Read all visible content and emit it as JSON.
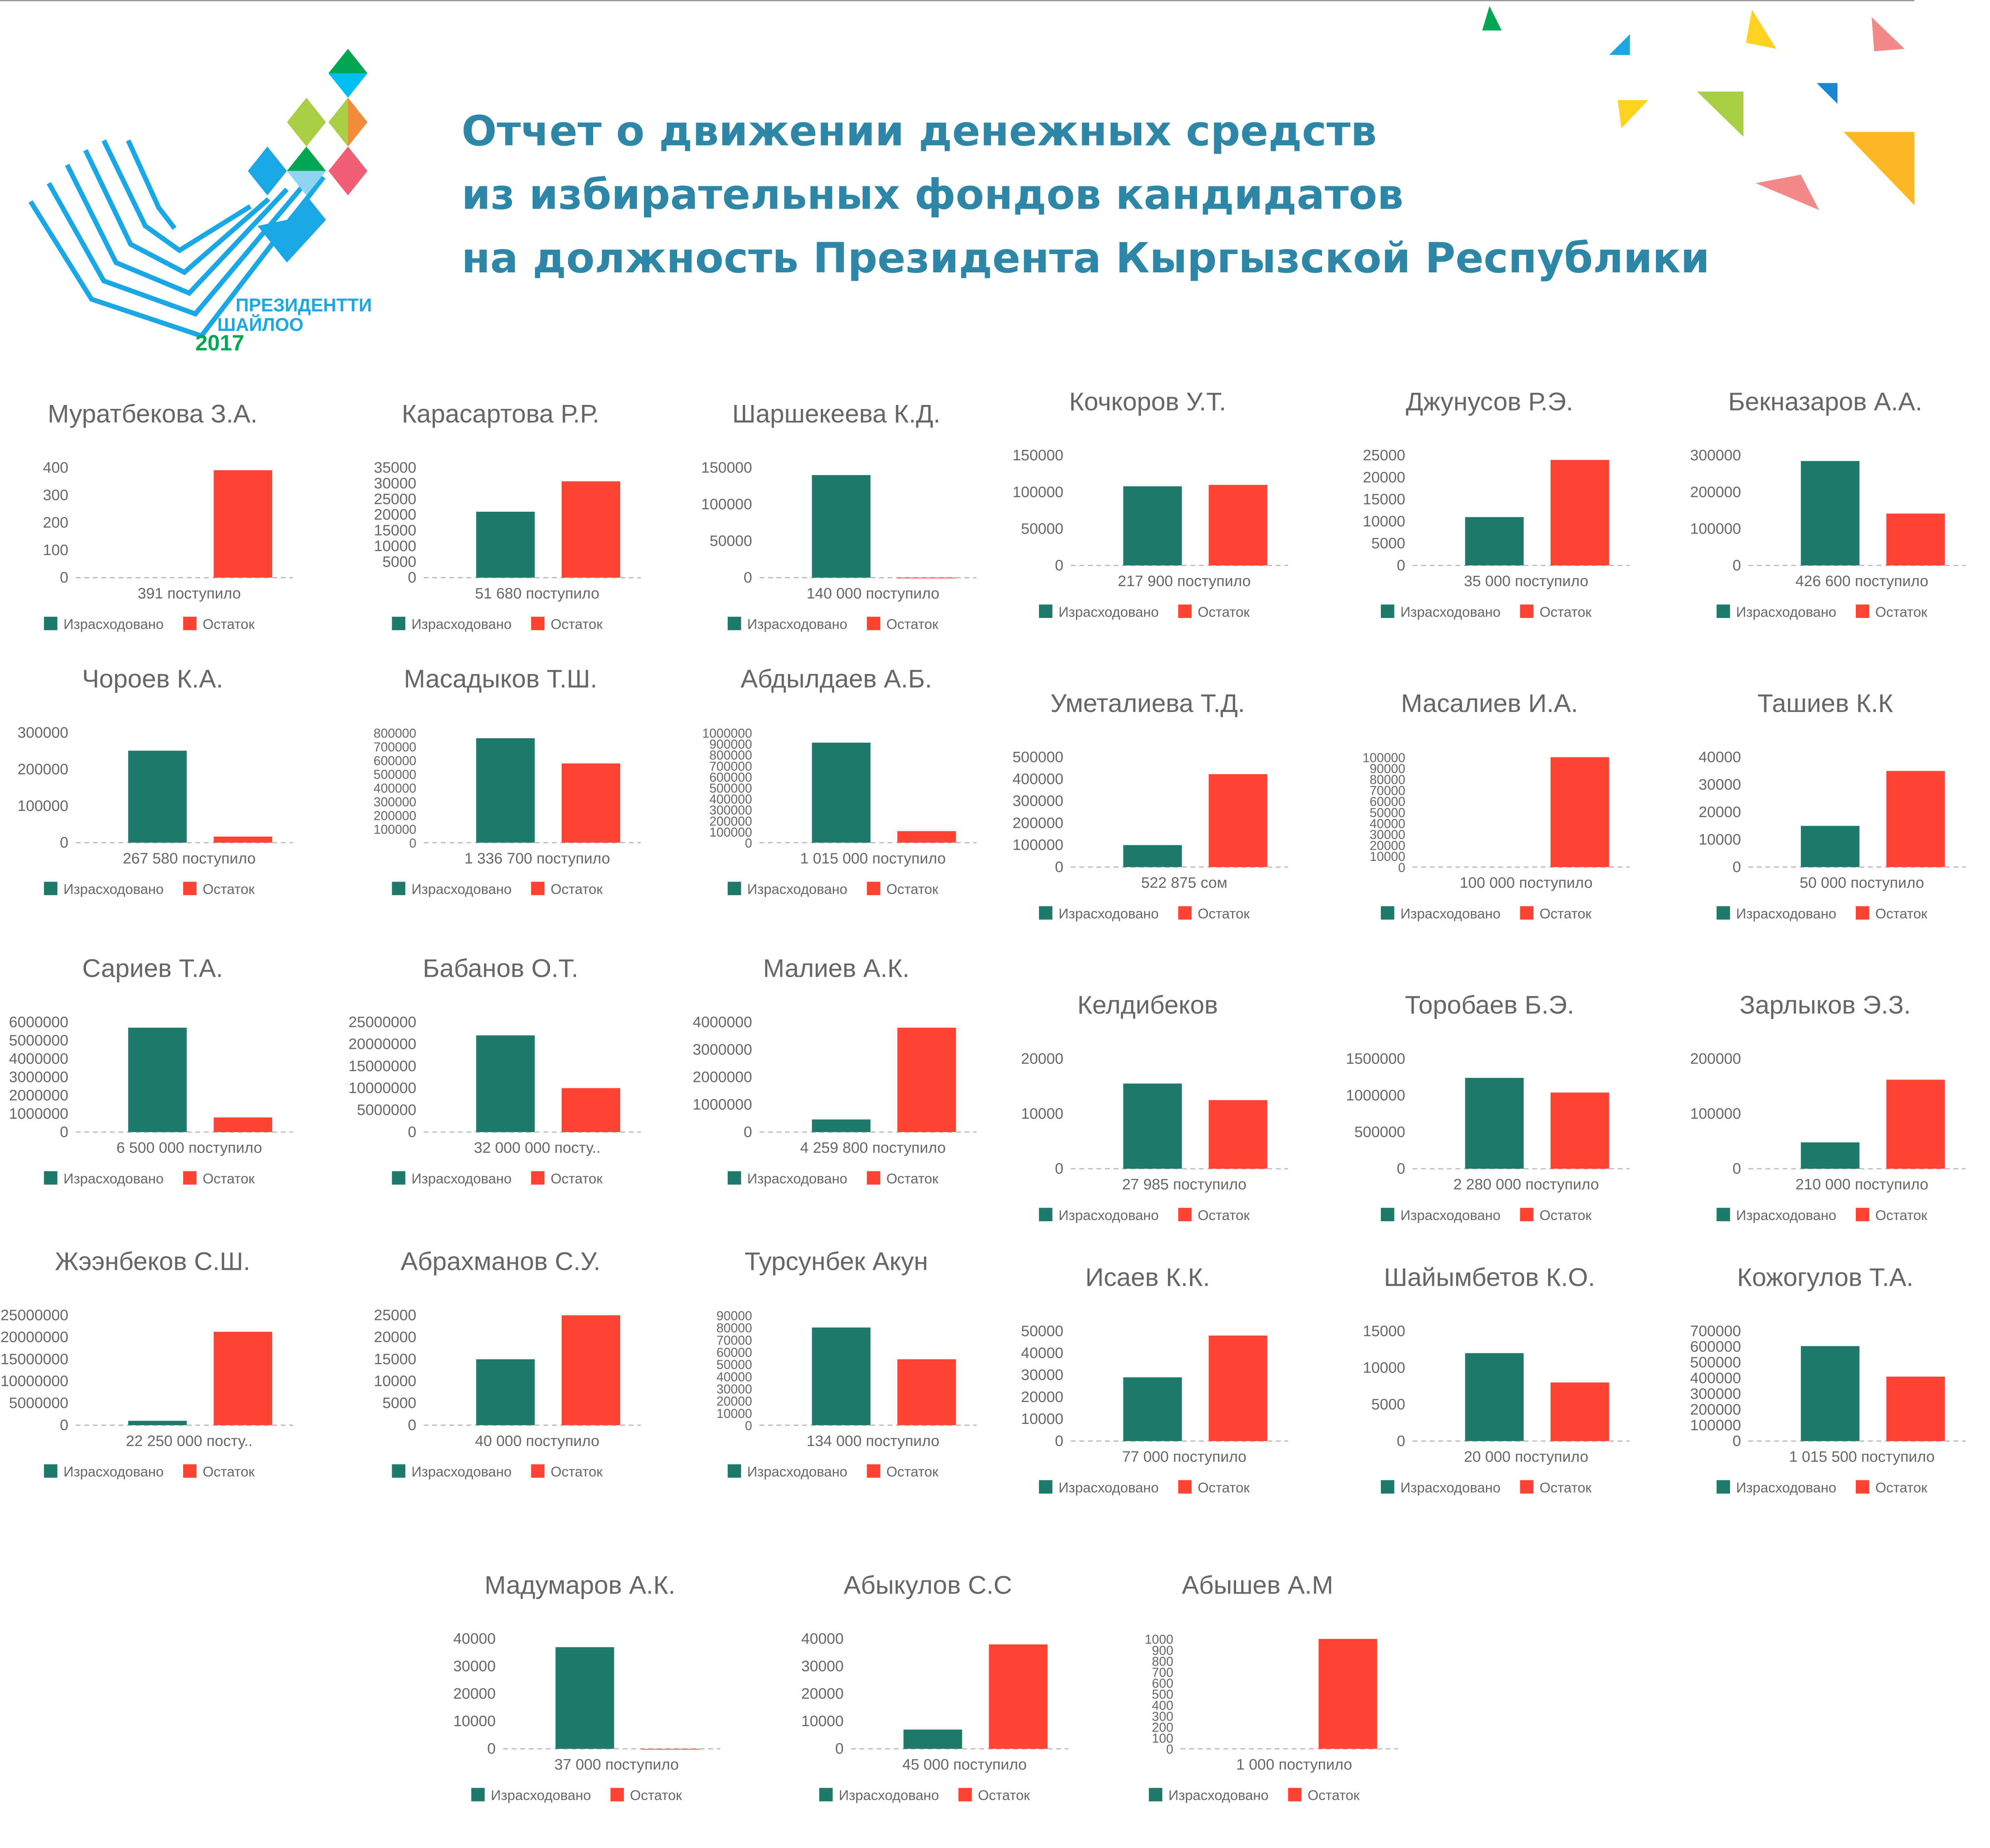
{
  "header": {
    "title_lines": [
      "Отчет о движении денежных средств",
      "из избирательных фондов кандидатов",
      "на должность Президента Кыргызской Республики"
    ]
  },
  "logo": {
    "text": [
      "ПРЕЗИДЕНТТИ",
      "ШАЙЛОО",
      "2017"
    ]
  },
  "legend": {
    "spent": "Израсходовано",
    "remaining": "Остаток"
  },
  "colors": {
    "spent": "#1f7a6c",
    "remaining": "#ff4433",
    "title": "#2e87a6",
    "text": "#666666"
  },
  "chart_data": [
    {
      "type": "bar",
      "title": "Муратбекова З.А.",
      "xlabel": "391 поступило",
      "ticks": [
        0,
        100,
        200,
        300,
        400
      ],
      "spent": 0,
      "remaining": 391
    },
    {
      "type": "bar",
      "title": "Карасартова Р.Р.",
      "xlabel": "51 680 поступило",
      "ticks": [
        0,
        5000,
        10000,
        15000,
        20000,
        25000,
        30000,
        35000
      ],
      "spent": 21000,
      "remaining": 30680
    },
    {
      "type": "bar",
      "title": "Шаршекеева К.Д.",
      "xlabel": "140 000 поступило",
      "ticks": [
        0,
        50000,
        100000,
        150000
      ],
      "spent": 140000,
      "remaining": 0
    },
    {
      "type": "bar",
      "title": "Кочкоров У.Т.",
      "xlabel": "217 900 поступило",
      "ticks": [
        0,
        50000,
        100000,
        150000
      ],
      "spent": 108000,
      "remaining": 109900
    },
    {
      "type": "bar",
      "title": "Джунусов Р.Э.",
      "xlabel": "35 000 поступило",
      "ticks": [
        0,
        5000,
        10000,
        15000,
        20000,
        25000
      ],
      "spent": 11000,
      "remaining": 24000
    },
    {
      "type": "bar",
      "title": "Бекназаров А.А.",
      "xlabel": "426 600 поступило",
      "ticks": [
        0,
        100000,
        200000,
        300000
      ],
      "spent": 285000,
      "remaining": 141600
    },
    {
      "type": "bar",
      "title": "Чороев К.А.",
      "xlabel": "267 580 поступило",
      "ticks": [
        0,
        100000,
        200000,
        300000
      ],
      "spent": 251000,
      "remaining": 16580
    },
    {
      "type": "bar",
      "title": "Масадыков Т.Ш.",
      "xlabel": "1 336 700 поступило",
      "ticks": [
        0,
        100000,
        200000,
        300000,
        400000,
        500000,
        600000,
        700000,
        800000
      ],
      "spent": 760000,
      "remaining": 576700
    },
    {
      "type": "bar",
      "title": "Абдылдаев А.Б.",
      "xlabel": "1 015 000 поступило",
      "ticks": [
        0,
        100000,
        200000,
        300000,
        400000,
        500000,
        600000,
        700000,
        800000,
        900000,
        1000000
      ],
      "spent": 910000,
      "remaining": 105000
    },
    {
      "type": "bar",
      "title": "Уметалиева Т.Д.",
      "xlabel": "522 875 сом",
      "ticks": [
        0,
        100000,
        200000,
        300000,
        400000,
        500000
      ],
      "spent": 100000,
      "remaining": 422875
    },
    {
      "type": "bar",
      "title": "Масалиев И.А.",
      "xlabel": "100 000 поступило",
      "ticks": [
        0,
        10000,
        20000,
        30000,
        40000,
        50000,
        60000,
        70000,
        80000,
        90000,
        100000
      ],
      "spent": 0,
      "remaining": 100000
    },
    {
      "type": "bar",
      "title": "Ташиев К.К",
      "xlabel": "50 000 поступило",
      "ticks": [
        0,
        10000,
        20000,
        30000,
        40000
      ],
      "spent": 15000,
      "remaining": 35000
    },
    {
      "type": "bar",
      "title": "Сариев Т.А.",
      "xlabel": "6 500 000 поступило",
      "ticks": [
        0,
        1000000,
        2000000,
        3000000,
        4000000,
        5000000,
        6000000
      ],
      "spent": 5700000,
      "remaining": 800000
    },
    {
      "type": "bar",
      "title": "Бабанов О.Т.",
      "xlabel": "32 000 000 посту..",
      "ticks": [
        0,
        5000000,
        10000000,
        15000000,
        20000000,
        25000000
      ],
      "spent": 22000000,
      "remaining": 10000000
    },
    {
      "type": "bar",
      "title": "Малиев А.К.",
      "xlabel": "4 259 800 поступило",
      "ticks": [
        0,
        1000000,
        2000000,
        3000000,
        4000000
      ],
      "spent": 460000,
      "remaining": 3800000
    },
    {
      "type": "bar",
      "title": "Келдибеков",
      "xlabel": "27 985 поступило",
      "ticks": [
        0,
        10000,
        20000
      ],
      "spent": 15500,
      "remaining": 12485
    },
    {
      "type": "bar",
      "title": "Торобаев Б.Э.",
      "xlabel": "2 280 000 поступило",
      "ticks": [
        0,
        500000,
        1000000,
        1500000
      ],
      "spent": 1240000,
      "remaining": 1040000
    },
    {
      "type": "bar",
      "title": "Зарлыков Э.З.",
      "xlabel": "210 000 поступило",
      "ticks": [
        0,
        100000,
        200000
      ],
      "spent": 48000,
      "remaining": 162000
    },
    {
      "type": "bar",
      "title": "Жээнбеков С.Ш.",
      "xlabel": "22 250 000 посту..",
      "ticks": [
        0,
        5000000,
        10000000,
        15000000,
        20000000,
        25000000
      ],
      "spent": 1000000,
      "remaining": 21250000
    },
    {
      "type": "bar",
      "title": "Абрахманов С.У.",
      "xlabel": "40 000 поступило",
      "ticks": [
        0,
        5000,
        10000,
        15000,
        20000,
        25000
      ],
      "spent": 15000,
      "remaining": 25000
    },
    {
      "type": "bar",
      "title": "Турсунбек Акун",
      "xlabel": "134 000 поступило",
      "ticks": [
        0,
        10000,
        20000,
        30000,
        40000,
        50000,
        60000,
        70000,
        80000,
        90000
      ],
      "spent": 80000,
      "remaining": 54000
    },
    {
      "type": "bar",
      "title": "Исаев К.К.",
      "xlabel": "77 000 поступило",
      "ticks": [
        0,
        10000,
        20000,
        30000,
        40000,
        50000
      ],
      "spent": 29000,
      "remaining": 48000
    },
    {
      "type": "bar",
      "title": "Шайымбетов К.О.",
      "xlabel": "20 000 поступило",
      "ticks": [
        0,
        5000,
        10000,
        15000
      ],
      "spent": 12000,
      "remaining": 8000
    },
    {
      "type": "bar",
      "title": "Кожогулов Т.А.",
      "xlabel": "1 015 500 поступило",
      "ticks": [
        0,
        100000,
        200000,
        300000,
        400000,
        500000,
        600000,
        700000
      ],
      "spent": 605000,
      "remaining": 410500
    },
    {
      "type": "bar",
      "title": "Мадумаров А.К.",
      "xlabel": "37 000 поступило",
      "ticks": [
        0,
        10000,
        20000,
        30000,
        40000
      ],
      "spent": 37000,
      "remaining": 0
    },
    {
      "type": "bar",
      "title": "Абыкулов С.С",
      "xlabel": "45 000 поступило",
      "ticks": [
        0,
        10000,
        20000,
        30000,
        40000
      ],
      "spent": 7000,
      "remaining": 38000
    },
    {
      "type": "bar",
      "title": "Абышев А.М",
      "xlabel": "1 000 поступило",
      "ticks": [
        0,
        100,
        200,
        300,
        400,
        500,
        600,
        700,
        800,
        900,
        1000
      ],
      "spent": 0,
      "remaining": 1000
    }
  ]
}
